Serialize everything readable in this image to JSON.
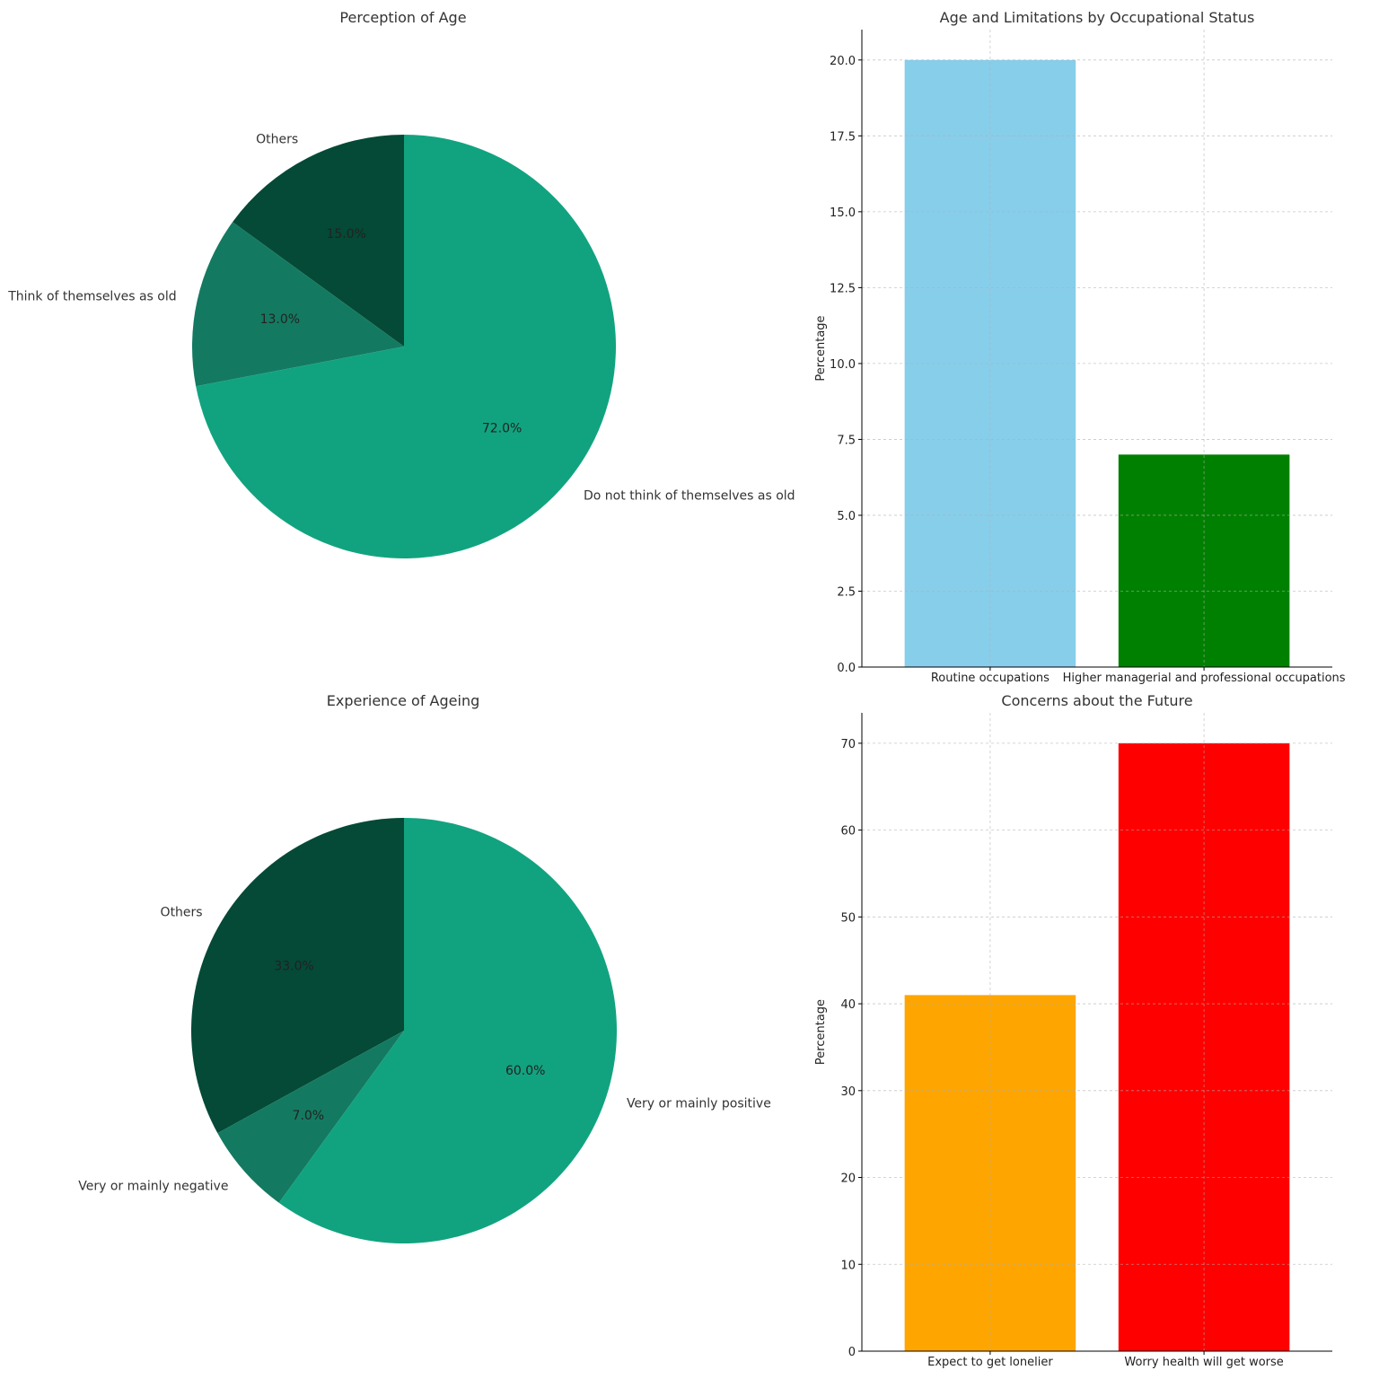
{
  "chart_data": [
    {
      "type": "pie",
      "title": "Perception of Age",
      "slices": [
        {
          "label": "Others",
          "value": 15.0,
          "pct_label": "15.0%",
          "color": "#044a36"
        },
        {
          "label": "Think of themselves as old",
          "value": 13.0,
          "pct_label": "13.0%",
          "color": "#137a61"
        },
        {
          "label": "Do not think of themselves as old",
          "value": 72.0,
          "pct_label": "72.0%",
          "color": "#11a37f"
        }
      ]
    },
    {
      "type": "bar",
      "title": "Age and Limitations by Occupational Status",
      "ylabel": "Percentage",
      "ylim": [
        0,
        21
      ],
      "yticks": [
        0.0,
        2.5,
        5.0,
        7.5,
        10.0,
        12.5,
        15.0,
        17.5,
        20.0
      ],
      "tick_decimals": 1,
      "grid": true,
      "categories": [
        "Routine occupations",
        "Higher managerial and professional occupations"
      ],
      "values": [
        20,
        7
      ],
      "colors": [
        "#87ceeb",
        "#008000"
      ]
    },
    {
      "type": "pie",
      "title": "Experience of Ageing",
      "slices": [
        {
          "label": "Others",
          "value": 33.0,
          "pct_label": "33.0%",
          "color": "#044a36"
        },
        {
          "label": "Very or mainly negative",
          "value": 7.0,
          "pct_label": "7.0%",
          "color": "#137a61"
        },
        {
          "label": "Very or mainly positive",
          "value": 60.0,
          "pct_label": "60.0%",
          "color": "#11a37f"
        }
      ]
    },
    {
      "type": "bar",
      "title": "Concerns about the Future",
      "ylabel": "Percentage",
      "ylim": [
        0,
        73.5
      ],
      "yticks": [
        0,
        10,
        20,
        30,
        40,
        50,
        60,
        70
      ],
      "tick_decimals": 0,
      "grid": true,
      "categories": [
        "Expect to get lonelier",
        "Worry health will get worse"
      ],
      "values": [
        41,
        70
      ],
      "colors": [
        "#ffa500",
        "#ff0000"
      ]
    }
  ]
}
